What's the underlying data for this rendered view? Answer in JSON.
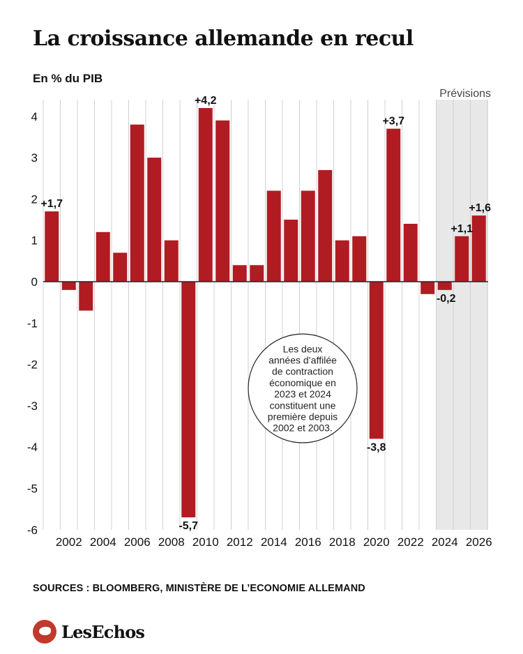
{
  "header": {
    "title": "La croissance allemande en recul",
    "subtitle": "En % du PIB"
  },
  "footer": {
    "source": "SOURCES : BLOOMBERG, MINISTÈRE DE L’ECONOMIE ALLEMAND",
    "logo_text": "LesEchos",
    "logo_icon": "les-echos-bird-icon"
  },
  "colors": {
    "bar": "#b01c22",
    "forecast_band": "#e8e8e8",
    "grid": "#d0d0d0",
    "zero_line": "#222222",
    "text": "#111111"
  },
  "chart_data": {
    "type": "bar",
    "title": "La croissance allemande en recul",
    "ylabel": "En % du PIB",
    "x": [
      2001,
      2002,
      2003,
      2004,
      2005,
      2006,
      2007,
      2008,
      2009,
      2010,
      2011,
      2012,
      2013,
      2014,
      2015,
      2016,
      2017,
      2018,
      2019,
      2020,
      2021,
      2022,
      2023,
      2024,
      2025,
      2026
    ],
    "values": [
      1.7,
      -0.2,
      -0.7,
      1.2,
      0.7,
      3.8,
      3.0,
      1.0,
      -5.7,
      4.2,
      3.9,
      0.4,
      0.4,
      2.2,
      1.5,
      2.2,
      2.7,
      1.0,
      1.1,
      -3.8,
      3.7,
      1.4,
      -0.3,
      -0.2,
      1.1,
      1.6
    ],
    "x_tick_labels": [
      "2002",
      "2004",
      "2006",
      "2008",
      "2010",
      "2012",
      "2014",
      "2016",
      "2018",
      "2020",
      "2022",
      "2024",
      "2026"
    ],
    "y_ticks": [
      4,
      3,
      2,
      1,
      0,
      -1,
      -2,
      -3,
      -4,
      -5,
      -6
    ],
    "y_tick_labels": [
      "4",
      "3",
      "2",
      "1",
      "0",
      "-1",
      "-2",
      "-3",
      "-4",
      "-5",
      "-6"
    ],
    "ylim": [
      -6,
      4.4
    ],
    "grid": "vertical",
    "data_labels": [
      {
        "x": 2001,
        "text": "+1,7"
      },
      {
        "x": 2009,
        "text": "-5,7"
      },
      {
        "x": 2010,
        "text": "+4,2"
      },
      {
        "x": 2020,
        "text": "-3,8"
      },
      {
        "x": 2021,
        "text": "+3,7"
      },
      {
        "x": 2024,
        "text": "-0,2"
      },
      {
        "x": 2025,
        "text": "+1,1"
      },
      {
        "x": 2026,
        "text": "+1,6"
      }
    ],
    "forecast": {
      "label": "Prévisions",
      "from": 2024,
      "to": 2026
    },
    "annotation": {
      "lines": [
        "Les deux",
        "années d’affilée",
        "de contraction",
        "économique en",
        "2023 et 2024",
        "constituent une",
        "première depuis",
        "2002 et 2003."
      ]
    }
  }
}
